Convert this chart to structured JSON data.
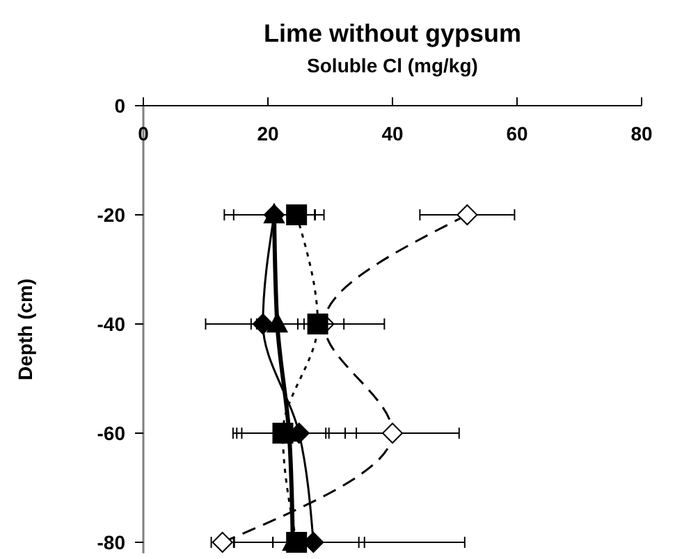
{
  "chart_data": {
    "type": "line",
    "title": "Lime without gypsum",
    "xlabel": "Soluble Cl (mg/kg)",
    "ylabel": "Depth (cm)",
    "xlim": [
      0,
      80
    ],
    "xticks": [
      0,
      20,
      40,
      60,
      80
    ],
    "ylim": [
      -82,
      0
    ],
    "yticks": [
      0,
      -20,
      -40,
      -60,
      -80
    ],
    "grid": false,
    "series": [
      {
        "color": "#000000",
        "marker": "diamond",
        "line_style": "dashed",
        "x": [
          52,
          29,
          40,
          12.7
        ],
        "values": [
          -20,
          -40,
          -60,
          -80
        ],
        "xerrors": [
          7.6,
          3.2,
          10.7,
          1.8
        ]
      },
      {
        "color": "#000000",
        "marker": "square",
        "line_style": "dotted",
        "x": [
          24.6,
          28,
          22.4,
          24.6
        ],
        "values": [
          -20,
          -40,
          -60,
          -80
        ],
        "xerrors": [
          3,
          10.7,
          7.4,
          10
        ]
      },
      {
        "color": "#000000",
        "marker": "diamond",
        "line_style": "solid",
        "x": [
          21,
          19.2,
          25,
          27.3
        ],
        "values": [
          -20,
          -40,
          -60,
          -80
        ],
        "xerrors": [
          6.5,
          9.2,
          9.2,
          [
            20.8,
            51.6
          ]
        ]
      },
      {
        "color": "#000000",
        "marker": "triangle",
        "line_style": "solid",
        "x": [
          21,
          21.5,
          23.4,
          24
        ],
        "values": [
          -20,
          -40,
          -60,
          -80
        ],
        "xerrors": [
          8,
          3.3,
          9,
          [
            20.8,
            35.5
          ]
        ]
      }
    ]
  }
}
